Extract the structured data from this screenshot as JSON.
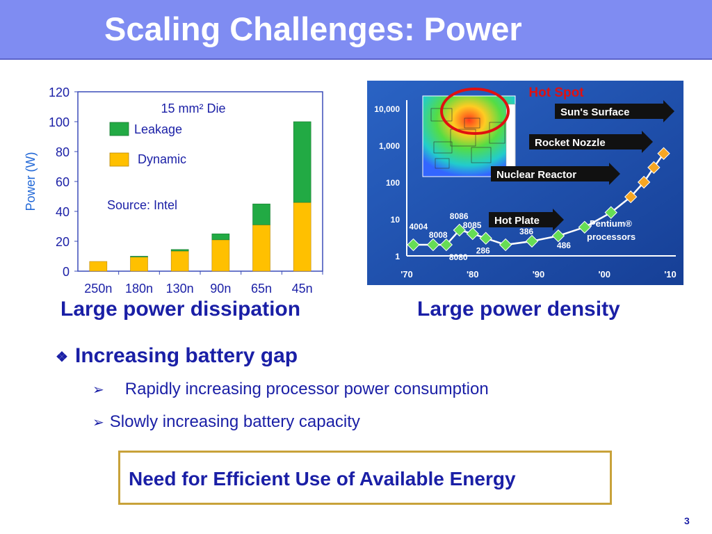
{
  "slide": {
    "title": "Scaling Challenges: Power",
    "page_number": "3"
  },
  "captions": {
    "left": "Large power dissipation",
    "right": "Large power density"
  },
  "bullets": {
    "main": "Increasing battery gap",
    "sub1": "Rapidly increasing processor power consumption",
    "sub2": "Slowly increasing battery capacity"
  },
  "callout": "Need for Efficient Use of Available Energy",
  "colors": {
    "title_bar": "#7f8cf2",
    "text_blue": "#1a1fa6",
    "leakage": "#22aa44",
    "dynamic": "#ffc000",
    "chart2_bg": "#1f55b5",
    "hot_spot": "#e01010"
  },
  "chart_data": [
    {
      "type": "bar",
      "stacked": true,
      "title": "15 mm² Die",
      "ylabel": "Power (W)",
      "xlabel": "",
      "annotation": "Source: Intel",
      "categories": [
        "250n",
        "180n",
        "130n",
        "90n",
        "65n",
        "45n"
      ],
      "yticks": [
        0,
        20,
        40,
        60,
        80,
        100,
        120
      ],
      "ylim": [
        0,
        120
      ],
      "series": [
        {
          "name": "Dynamic",
          "values": [
            6.5,
            9.5,
            13.5,
            21,
            31,
            46
          ]
        },
        {
          "name": "Leakage",
          "values": [
            0,
            0.5,
            1,
            4,
            14,
            54
          ]
        }
      ],
      "legend": "top-left"
    },
    {
      "type": "scatter",
      "scale": "log",
      "title": "Hot Spot",
      "xticks": [
        "'70",
        "'80",
        "'90",
        "'00",
        "'10"
      ],
      "yticks": [
        "1",
        "10",
        "100",
        "1,000",
        "10,000"
      ],
      "xlim": [
        1970,
        2010
      ],
      "ylim": [
        1,
        10000
      ],
      "points": [
        {
          "x": 1971,
          "y": 2,
          "label": "4004"
        },
        {
          "x": 1974,
          "y": 2,
          "label": "8008"
        },
        {
          "x": 1976,
          "y": 2,
          "label": "8080"
        },
        {
          "x": 1978,
          "y": 5,
          "label": "8086"
        },
        {
          "x": 1980,
          "y": 4,
          "label": "8085"
        },
        {
          "x": 1982,
          "y": 3,
          "label": "286"
        },
        {
          "x": 1985,
          "y": 2,
          "label": ""
        },
        {
          "x": 1989,
          "y": 2.5,
          "label": "386"
        },
        {
          "x": 1993,
          "y": 3.5,
          "label": "486"
        },
        {
          "x": 1997,
          "y": 6,
          "label": ""
        },
        {
          "x": 2001,
          "y": 15,
          "label": ""
        },
        {
          "x": 2004,
          "y": 40,
          "label": ""
        },
        {
          "x": 2006,
          "y": 100,
          "label": ""
        },
        {
          "x": 2007.5,
          "y": 250,
          "label": ""
        },
        {
          "x": 2009,
          "y": 600,
          "label": ""
        }
      ],
      "reference_levels": [
        {
          "label": "Sun's Surface",
          "y": 8000
        },
        {
          "label": "Rocket Nozzle",
          "y": 1200
        },
        {
          "label": "Nuclear Reactor",
          "y": 250
        },
        {
          "label": "Hot Plate",
          "y": 10
        }
      ],
      "annotation": "Pentium® processors"
    }
  ]
}
